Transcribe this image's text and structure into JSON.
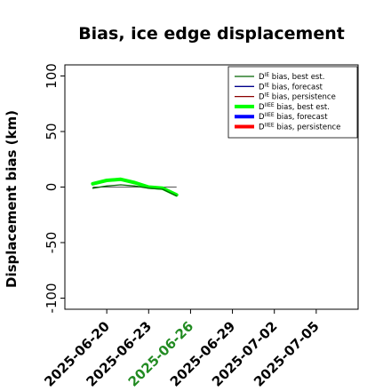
{
  "chart_data": {
    "type": "line",
    "title": "Bias, ice edge displacement",
    "ylabel": "Displacement bias (km)",
    "xlabel": "",
    "ylim": [
      -110,
      110
    ],
    "xlim": [
      "2025-06-17",
      "2025-07-08"
    ],
    "y_ticks": [
      -100,
      -50,
      0,
      50,
      100
    ],
    "x_ticks": [
      {
        "date": "2025-06-20",
        "label": "2025-06-20",
        "color": "#000000"
      },
      {
        "date": "2025-06-23",
        "label": "2025-06-23",
        "color": "#000000"
      },
      {
        "date": "2025-06-26",
        "label": "2025-06-26",
        "color": "#228B22"
      },
      {
        "date": "2025-06-29",
        "label": "2025-06-29",
        "color": "#000000"
      },
      {
        "date": "2025-07-02",
        "label": "2025-07-02",
        "color": "#000000"
      },
      {
        "date": "2025-07-05",
        "label": "2025-07-05",
        "color": "#000000"
      }
    ],
    "grid": false,
    "legend_position": "top-right",
    "series": [
      {
        "name_base": "D",
        "name_sup": "IE",
        "name_rest": " bias, best est.",
        "color": "#006400",
        "width": 1.3,
        "x": [
          "2025-06-19",
          "2025-06-20",
          "2025-06-21",
          "2025-06-22",
          "2025-06-23",
          "2025-06-24",
          "2025-06-25"
        ],
        "y": [
          -1,
          1,
          2,
          1,
          -1,
          -2,
          -8
        ]
      },
      {
        "name_base": "D",
        "name_sup": "IE",
        "name_rest": " bias, forecast",
        "color": "#00008B",
        "width": 1.3,
        "x": [],
        "y": []
      },
      {
        "name_base": "D",
        "name_sup": "IE",
        "name_rest": " bias, persistence",
        "color": "#8B0000",
        "width": 1.3,
        "x": [],
        "y": []
      },
      {
        "name_base": "D",
        "name_sup": "IIEE",
        "name_rest": " bias, best est.",
        "color": "#00FF00",
        "width": 4,
        "x": [
          "2025-06-19",
          "2025-06-20",
          "2025-06-21",
          "2025-06-22",
          "2025-06-23",
          "2025-06-24",
          "2025-06-25"
        ],
        "y": [
          3,
          6,
          7,
          4,
          0,
          -1,
          -7
        ]
      },
      {
        "name_base": "D",
        "name_sup": "IIEE",
        "name_rest": " bias, forecast",
        "color": "#0000FF",
        "width": 4,
        "x": [],
        "y": []
      },
      {
        "name_base": "D",
        "name_sup": "IIEE",
        "name_rest": " bias, persistence",
        "color": "#FF0000",
        "width": 4,
        "x": [],
        "y": []
      }
    ],
    "reference_line": {
      "y": 0,
      "x": [
        "2025-06-19",
        "2025-06-25"
      ],
      "color": "#555555"
    }
  }
}
